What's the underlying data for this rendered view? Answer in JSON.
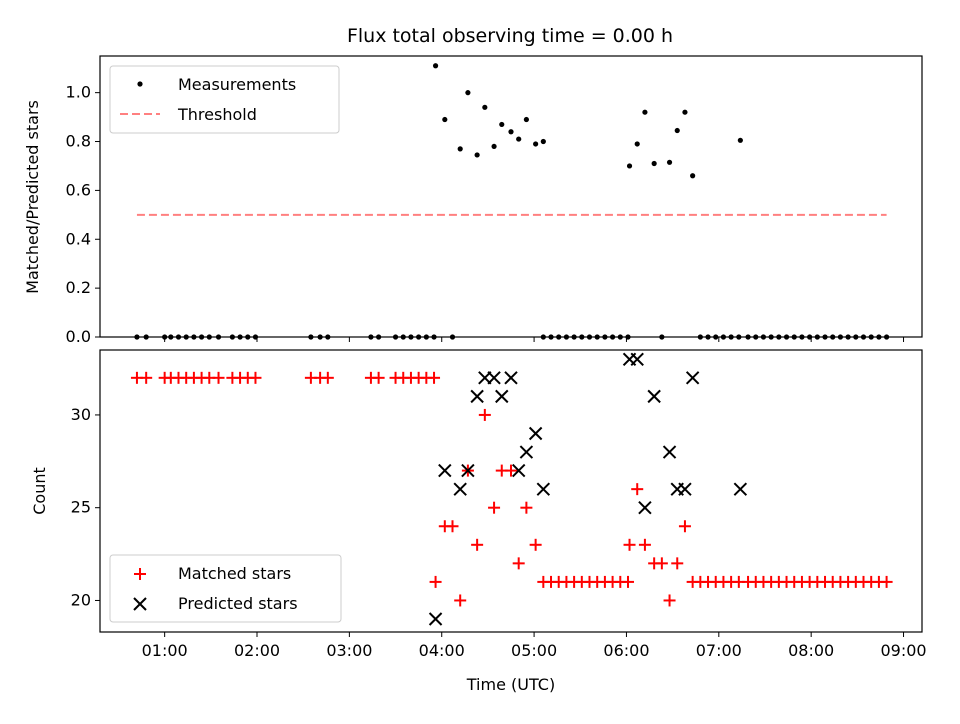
{
  "chart_data": [
    {
      "type": "scatter",
      "title": "Flux total observing time = 0.00 h",
      "xlabel": "",
      "ylabel": "Matched/Predicted stars",
      "ylim": [
        0,
        1.15
      ],
      "yticks": [
        "0.0",
        "0.2",
        "0.4",
        "0.6",
        "0.8",
        "1.0"
      ],
      "xlim": [
        "00:18",
        "09:12"
      ],
      "grid": false,
      "legend_position": "top-left",
      "series": [
        {
          "name": "Measurements",
          "color": "#000000",
          "marker": "dot",
          "points": [
            [
              "00:42",
              0
            ],
            [
              "00:48",
              0
            ],
            [
              "01:00",
              0
            ],
            [
              "01:04",
              0
            ],
            [
              "01:09",
              0
            ],
            [
              "01:14",
              0
            ],
            [
              "01:19",
              0
            ],
            [
              "01:24",
              0
            ],
            [
              "01:29",
              0
            ],
            [
              "01:35",
              0
            ],
            [
              "01:44",
              0
            ],
            [
              "01:49",
              0
            ],
            [
              "01:54",
              0
            ],
            [
              "01:59",
              0
            ],
            [
              "02:35",
              0
            ],
            [
              "02:41",
              0
            ],
            [
              "02:46",
              0
            ],
            [
              "03:14",
              0
            ],
            [
              "03:19",
              0
            ],
            [
              "03:30",
              0
            ],
            [
              "03:35",
              0
            ],
            [
              "03:40",
              0
            ],
            [
              "03:45",
              0
            ],
            [
              "03:50",
              0
            ],
            [
              "03:55",
              0
            ],
            [
              "03:56",
              1.11
            ],
            [
              "04:02",
              0.89
            ],
            [
              "04:07",
              0
            ],
            [
              "04:12",
              0.77
            ],
            [
              "04:17",
              1.0
            ],
            [
              "04:23",
              0.745
            ],
            [
              "04:28",
              0.94
            ],
            [
              "04:34",
              0.78
            ],
            [
              "04:39",
              0.87
            ],
            [
              "04:45",
              0.84
            ],
            [
              "04:50",
              0.81
            ],
            [
              "04:55",
              0.89
            ],
            [
              "05:01",
              0.79
            ],
            [
              "05:06",
              0.8
            ],
            [
              "05:06",
              0
            ],
            [
              "05:11",
              0
            ],
            [
              "05:16",
              0
            ],
            [
              "05:21",
              0
            ],
            [
              "05:26",
              0
            ],
            [
              "05:31",
              0
            ],
            [
              "05:36",
              0
            ],
            [
              "05:41",
              0
            ],
            [
              "05:46",
              0
            ],
            [
              "05:51",
              0
            ],
            [
              "05:56",
              0
            ],
            [
              "06:01",
              0
            ],
            [
              "06:02",
              0.7
            ],
            [
              "06:07",
              0.79
            ],
            [
              "06:12",
              0.92
            ],
            [
              "06:18",
              0.71
            ],
            [
              "06:23",
              0
            ],
            [
              "06:28",
              0.715
            ],
            [
              "06:33",
              0.845
            ],
            [
              "06:38",
              0.92
            ],
            [
              "06:43",
              0.66
            ],
            [
              "06:48",
              0
            ],
            [
              "06:53",
              0
            ],
            [
              "06:58",
              0
            ],
            [
              "07:03",
              0
            ],
            [
              "07:08",
              0
            ],
            [
              "07:13",
              0
            ],
            [
              "07:14",
              0.805
            ],
            [
              "07:19",
              0
            ],
            [
              "07:24",
              0
            ],
            [
              "07:29",
              0
            ],
            [
              "07:34",
              0
            ],
            [
              "07:39",
              0
            ],
            [
              "07:44",
              0
            ],
            [
              "07:49",
              0
            ],
            [
              "07:54",
              0
            ],
            [
              "07:59",
              0
            ],
            [
              "08:04",
              0
            ],
            [
              "08:09",
              0
            ],
            [
              "08:14",
              0
            ],
            [
              "08:19",
              0
            ],
            [
              "08:24",
              0
            ],
            [
              "08:29",
              0
            ],
            [
              "08:34",
              0
            ],
            [
              "08:39",
              0
            ],
            [
              "08:44",
              0
            ],
            [
              "08:49",
              0
            ]
          ]
        },
        {
          "name": "Threshold",
          "color": "#ff8080",
          "line_style": "dashed",
          "x": [
            "00:42",
            "08:49"
          ],
          "y": [
            0.5,
            0.5
          ]
        }
      ]
    },
    {
      "type": "scatter",
      "title": "",
      "xlabel": "Time (UTC)",
      "ylabel": "Count",
      "ylim": [
        18.3,
        33.5
      ],
      "yticks": [
        "20",
        "25",
        "30"
      ],
      "xlim": [
        "00:18",
        "09:12"
      ],
      "xticks": [
        "01:00",
        "02:00",
        "03:00",
        "04:00",
        "05:00",
        "06:00",
        "07:00",
        "08:00",
        "09:00"
      ],
      "grid": false,
      "legend_position": "bottom-left",
      "series": [
        {
          "name": "Matched stars",
          "color": "#ff0000",
          "marker": "plus",
          "points": [
            [
              "00:42",
              32
            ],
            [
              "00:48",
              32
            ],
            [
              "01:00",
              32
            ],
            [
              "01:04",
              32
            ],
            [
              "01:09",
              32
            ],
            [
              "01:14",
              32
            ],
            [
              "01:19",
              32
            ],
            [
              "01:24",
              32
            ],
            [
              "01:29",
              32
            ],
            [
              "01:35",
              32
            ],
            [
              "01:44",
              32
            ],
            [
              "01:49",
              32
            ],
            [
              "01:54",
              32
            ],
            [
              "01:59",
              32
            ],
            [
              "02:35",
              32
            ],
            [
              "02:41",
              32
            ],
            [
              "02:46",
              32
            ],
            [
              "03:14",
              32
            ],
            [
              "03:19",
              32
            ],
            [
              "03:30",
              32
            ],
            [
              "03:35",
              32
            ],
            [
              "03:40",
              32
            ],
            [
              "03:45",
              32
            ],
            [
              "03:50",
              32
            ],
            [
              "03:55",
              32
            ],
            [
              "03:56",
              21
            ],
            [
              "04:02",
              24
            ],
            [
              "04:07",
              24
            ],
            [
              "04:12",
              20
            ],
            [
              "04:17",
              27
            ],
            [
              "04:23",
              23
            ],
            [
              "04:28",
              30
            ],
            [
              "04:34",
              25
            ],
            [
              "04:39",
              27
            ],
            [
              "04:45",
              27
            ],
            [
              "04:50",
              22
            ],
            [
              "04:55",
              25
            ],
            [
              "05:01",
              23
            ],
            [
              "05:06",
              21
            ],
            [
              "05:11",
              21
            ],
            [
              "05:16",
              21
            ],
            [
              "05:21",
              21
            ],
            [
              "05:26",
              21
            ],
            [
              "05:31",
              21
            ],
            [
              "05:36",
              21
            ],
            [
              "05:41",
              21
            ],
            [
              "05:46",
              21
            ],
            [
              "05:51",
              21
            ],
            [
              "05:56",
              21
            ],
            [
              "06:01",
              21
            ],
            [
              "06:02",
              23
            ],
            [
              "06:07",
              26
            ],
            [
              "06:12",
              23
            ],
            [
              "06:18",
              22
            ],
            [
              "06:23",
              22
            ],
            [
              "06:28",
              20
            ],
            [
              "06:33",
              22
            ],
            [
              "06:38",
              24
            ],
            [
              "06:43",
              21
            ],
            [
              "06:48",
              21
            ],
            [
              "06:53",
              21
            ],
            [
              "06:58",
              21
            ],
            [
              "07:03",
              21
            ],
            [
              "07:08",
              21
            ],
            [
              "07:13",
              21
            ],
            [
              "07:19",
              21
            ],
            [
              "07:24",
              21
            ],
            [
              "07:29",
              21
            ],
            [
              "07:34",
              21
            ],
            [
              "07:39",
              21
            ],
            [
              "07:44",
              21
            ],
            [
              "07:49",
              21
            ],
            [
              "07:54",
              21
            ],
            [
              "07:59",
              21
            ],
            [
              "08:04",
              21
            ],
            [
              "08:09",
              21
            ],
            [
              "08:14",
              21
            ],
            [
              "08:19",
              21
            ],
            [
              "08:24",
              21
            ],
            [
              "08:29",
              21
            ],
            [
              "08:34",
              21
            ],
            [
              "08:39",
              21
            ],
            [
              "08:44",
              21
            ],
            [
              "08:49",
              21
            ]
          ]
        },
        {
          "name": "Predicted stars",
          "color": "#000000",
          "marker": "x",
          "points": [
            [
              "03:56",
              19
            ],
            [
              "04:02",
              27
            ],
            [
              "04:12",
              26
            ],
            [
              "04:17",
              27
            ],
            [
              "04:23",
              31
            ],
            [
              "04:28",
              32
            ],
            [
              "04:34",
              32
            ],
            [
              "04:39",
              31
            ],
            [
              "04:45",
              32
            ],
            [
              "04:50",
              27
            ],
            [
              "04:55",
              28
            ],
            [
              "05:01",
              29
            ],
            [
              "05:06",
              26
            ],
            [
              "06:02",
              33
            ],
            [
              "06:07",
              33
            ],
            [
              "06:12",
              25
            ],
            [
              "06:18",
              31
            ],
            [
              "06:28",
              28
            ],
            [
              "06:33",
              26
            ],
            [
              "06:38",
              26
            ],
            [
              "06:43",
              32
            ],
            [
              "07:14",
              26
            ]
          ]
        }
      ]
    }
  ]
}
